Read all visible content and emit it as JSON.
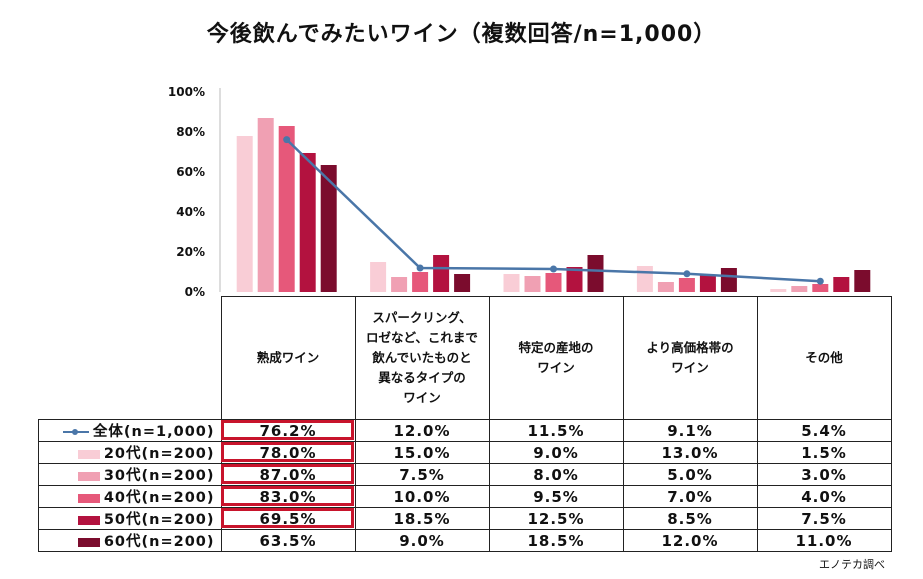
{
  "chart_data": {
    "type": "bar",
    "title": "今後飲んでみたいワイン（複数回答/n=1,000）",
    "ylim": [
      0,
      100
    ],
    "yticks": [
      "0%",
      "20%",
      "40%",
      "60%",
      "80%",
      "100%"
    ],
    "categories": [
      [
        "熟成ワイン"
      ],
      [
        "スパークリング、",
        "ロゼなど、これまで",
        "飲んでいたものと",
        "異なるタイプの",
        "ワイン"
      ],
      [
        "特定の産地の",
        "ワイン"
      ],
      [
        "より高価格帯の",
        "ワイン"
      ],
      [
        "その他"
      ]
    ],
    "line_series": {
      "name": "全体(n=1,000)",
      "color": "#4a76a8",
      "values": [
        76.2,
        12.0,
        11.5,
        9.1,
        5.4
      ],
      "labels": [
        "76.2%",
        "12.0%",
        "11.5%",
        "9.1%",
        "5.4%"
      ]
    },
    "bar_series": [
      {
        "name": "20代(n=200)",
        "color": "#f9cdd6",
        "values": [
          78.0,
          15.0,
          9.0,
          13.0,
          1.5
        ],
        "labels": [
          "78.0%",
          "15.0%",
          "9.0%",
          "13.0%",
          "1.5%"
        ]
      },
      {
        "name": "30代(n=200)",
        "color": "#f0a0b3",
        "values": [
          87.0,
          7.5,
          8.0,
          5.0,
          3.0
        ],
        "labels": [
          "87.0%",
          "7.5%",
          "8.0%",
          "5.0%",
          "3.0%"
        ]
      },
      {
        "name": "40代(n=200)",
        "color": "#e6587a",
        "values": [
          83.0,
          10.0,
          9.5,
          7.0,
          4.0
        ],
        "labels": [
          "83.0%",
          "10.0%",
          "9.5%",
          "7.0%",
          "4.0%"
        ]
      },
      {
        "name": "50代(n=200)",
        "color": "#b3123f",
        "values": [
          69.5,
          18.5,
          12.5,
          8.5,
          7.5
        ],
        "labels": [
          "69.5%",
          "18.5%",
          "12.5%",
          "8.5%",
          "7.5%"
        ]
      },
      {
        "name": "60代(n=200)",
        "color": "#7b0c2d",
        "values": [
          63.5,
          9.0,
          18.5,
          12.0,
          11.0
        ],
        "labels": [
          "63.5%",
          "9.0%",
          "18.5%",
          "12.0%",
          "11.0%"
        ]
      }
    ],
    "highlight_color": "#c8142c",
    "source": "エノテカ調べ"
  }
}
